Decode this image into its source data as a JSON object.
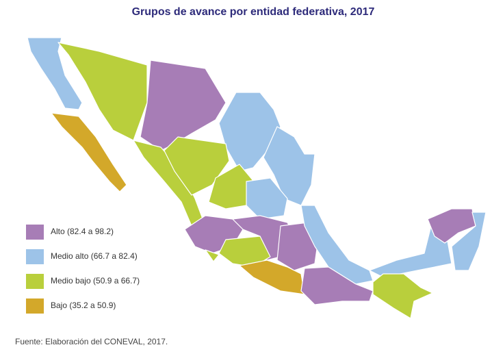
{
  "title": "Grupos de avance por entidad federativa, 2017",
  "legend": [
    {
      "label": "Alto (82.4 a 98.2)",
      "color": "#a77db6"
    },
    {
      "label": "Medio alto (66.7 a 82.4)",
      "color": "#9dc3e8"
    },
    {
      "label": "Medio bajo (50.9 a 66.7)",
      "color": "#b9cf3c"
    },
    {
      "label": "Bajo (35.2 a 50.9)",
      "color": "#d3a82a"
    }
  ],
  "source": "Fuente: Elaboración del CONEVAL, 2017."
}
